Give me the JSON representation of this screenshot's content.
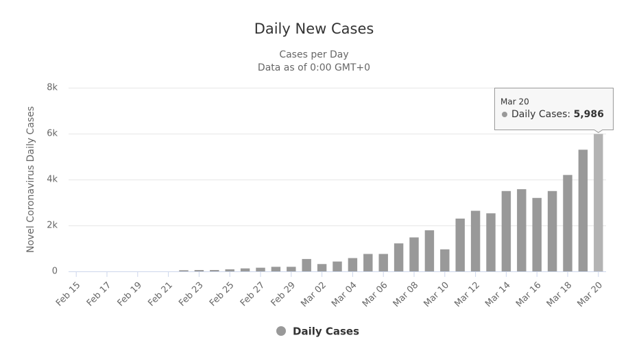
{
  "chart_data": {
    "type": "bar",
    "title": "Daily New Cases",
    "subtitle": [
      "Cases per Day",
      "Data as of 0:00 GMT+0"
    ],
    "y_axis_label": "Novel Coronavirus Daily Cases",
    "categories": [
      "Feb 15",
      null,
      "Feb 17",
      null,
      "Feb 19",
      null,
      "Feb 21",
      null,
      "Feb 23",
      null,
      "Feb 25",
      null,
      "Feb 27",
      null,
      "Feb 29",
      null,
      "Mar 02",
      null,
      "Mar 04",
      null,
      "Mar 06",
      null,
      "Mar 08",
      null,
      "Mar 10",
      null,
      "Mar 12",
      null,
      "Mar 14",
      null,
      "Mar 16",
      null,
      "Mar 18",
      null,
      "Mar 20"
    ],
    "series": [
      {
        "name": "Daily Cases",
        "color": "#999999",
        "values": [
          0,
          0,
          0,
          0,
          0,
          0,
          0,
          50,
          60,
          60,
          90,
          130,
          160,
          200,
          200,
          540,
          320,
          430,
          580,
          760,
          760,
          1220,
          1480,
          1790,
          960,
          2300,
          2640,
          2530,
          3500,
          3580,
          3200,
          3500,
          4200,
          5300,
          5986
        ],
        "value_labels": [
          null,
          null,
          null,
          null,
          null,
          null,
          null,
          null,
          null,
          null,
          null,
          null,
          null,
          null,
          null,
          null,
          null,
          null,
          null,
          null,
          null,
          null,
          null,
          null,
          null,
          null,
          null,
          null,
          null,
          null,
          null,
          null,
          null,
          null,
          "5,986"
        ]
      }
    ],
    "highlight_color": "#b3b3b3",
    "tooltip": {
      "label": "Daily Cases:"
    },
    "ylim": [
      0,
      8000
    ],
    "yticks": [
      {
        "value": 0,
        "label": "0"
      },
      {
        "value": 2000,
        "label": "2k"
      },
      {
        "value": 4000,
        "label": "4k"
      },
      {
        "value": 6000,
        "label": "6k"
      },
      {
        "value": 8000,
        "label": "8k"
      }
    ],
    "grid": true,
    "legend": "bottom"
  }
}
